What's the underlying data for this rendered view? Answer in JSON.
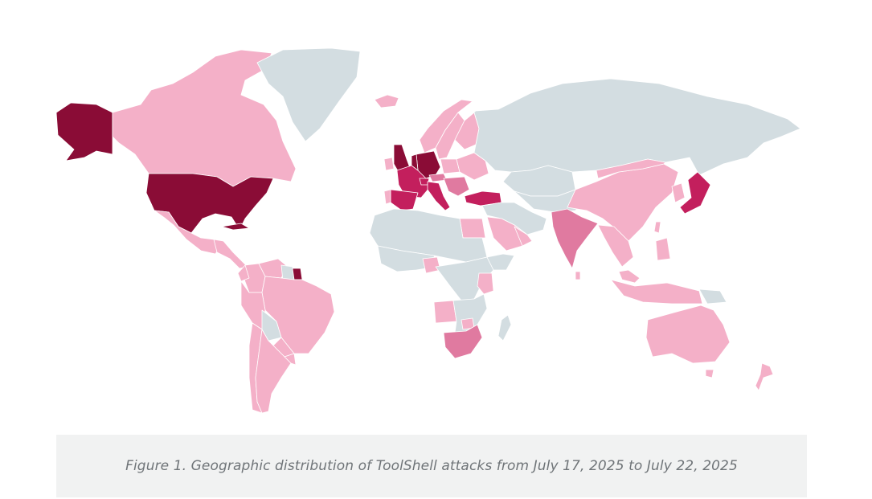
{
  "figure": {
    "caption": "Figure 1. Geographic distribution of ToolShell attacks from July 17, 2025 to July 22, 2025"
  },
  "colors": {
    "none": "#d3dde1",
    "low": "#f4b0c8",
    "medium": "#e07aa0",
    "high": "#c31f5d",
    "highest": "#8a0c36"
  },
  "regions": [
    {
      "name": "Alaska",
      "level": "highest"
    },
    {
      "name": "Canada",
      "level": "low"
    },
    {
      "name": "United States",
      "level": "highest"
    },
    {
      "name": "Mexico",
      "level": "low"
    },
    {
      "name": "Central America",
      "level": "low"
    },
    {
      "name": "Cuba",
      "level": "highest"
    },
    {
      "name": "Greenland",
      "level": "none"
    },
    {
      "name": "Colombia",
      "level": "low"
    },
    {
      "name": "Venezuela",
      "level": "low"
    },
    {
      "name": "Guyana",
      "level": "none"
    },
    {
      "name": "French Guiana",
      "level": "highest"
    },
    {
      "name": "Brazil",
      "level": "low"
    },
    {
      "name": "Peru",
      "level": "low"
    },
    {
      "name": "Ecuador",
      "level": "low"
    },
    {
      "name": "Bolivia",
      "level": "none"
    },
    {
      "name": "Paraguay",
      "level": "low"
    },
    {
      "name": "Chile",
      "level": "low"
    },
    {
      "name": "Argentina",
      "level": "low"
    },
    {
      "name": "Uruguay",
      "level": "low"
    },
    {
      "name": "Iceland",
      "level": "low"
    },
    {
      "name": "Norway",
      "level": "low"
    },
    {
      "name": "Sweden",
      "level": "low"
    },
    {
      "name": "Finland",
      "level": "low"
    },
    {
      "name": "United Kingdom",
      "level": "highest"
    },
    {
      "name": "Ireland",
      "level": "low"
    },
    {
      "name": "France",
      "level": "high"
    },
    {
      "name": "Spain",
      "level": "high"
    },
    {
      "name": "Portugal",
      "level": "low"
    },
    {
      "name": "Germany",
      "level": "highest"
    },
    {
      "name": "Netherlands",
      "level": "highest"
    },
    {
      "name": "Switzerland",
      "level": "high"
    },
    {
      "name": "Italy",
      "level": "high"
    },
    {
      "name": "Austria",
      "level": "medium"
    },
    {
      "name": "Poland",
      "level": "low"
    },
    {
      "name": "Eastern Europe",
      "level": "low"
    },
    {
      "name": "Balkans",
      "level": "medium"
    },
    {
      "name": "Turkey",
      "level": "high"
    },
    {
      "name": "Russia",
      "level": "none"
    },
    {
      "name": "Kazakhstan",
      "level": "none"
    },
    {
      "name": "Central Asia",
      "level": "none"
    },
    {
      "name": "Middle East",
      "level": "none"
    },
    {
      "name": "Saudi Arabia",
      "level": "low"
    },
    {
      "name": "Gulf States",
      "level": "low"
    },
    {
      "name": "Egypt",
      "level": "low"
    },
    {
      "name": "North Africa",
      "level": "none"
    },
    {
      "name": "West Africa",
      "level": "none"
    },
    {
      "name": "Nigeria",
      "level": "low"
    },
    {
      "name": "Central Africa",
      "level": "none"
    },
    {
      "name": "Kenya",
      "level": "low"
    },
    {
      "name": "East Africa",
      "level": "none"
    },
    {
      "name": "Angola",
      "level": "low"
    },
    {
      "name": "Southern Africa",
      "level": "none"
    },
    {
      "name": "Zimbabwe",
      "level": "low"
    },
    {
      "name": "South Africa",
      "level": "medium"
    },
    {
      "name": "Madagascar",
      "level": "none"
    },
    {
      "name": "India",
      "level": "medium"
    },
    {
      "name": "Sri Lanka",
      "level": "low"
    },
    {
      "name": "China",
      "level": "low"
    },
    {
      "name": "Mongolia",
      "level": "low"
    },
    {
      "name": "Southeast Asia",
      "level": "low"
    },
    {
      "name": "Korea",
      "level": "low"
    },
    {
      "name": "Japan",
      "level": "high"
    },
    {
      "name": "Taiwan",
      "level": "low"
    },
    {
      "name": "Philippines",
      "level": "low"
    },
    {
      "name": "Malaysia",
      "level": "low"
    },
    {
      "name": "Indonesia",
      "level": "low"
    },
    {
      "name": "Papua New Guinea",
      "level": "none"
    },
    {
      "name": "Australia",
      "level": "low"
    },
    {
      "name": "Tasmania",
      "level": "low"
    },
    {
      "name": "New Zealand",
      "level": "low"
    }
  ]
}
